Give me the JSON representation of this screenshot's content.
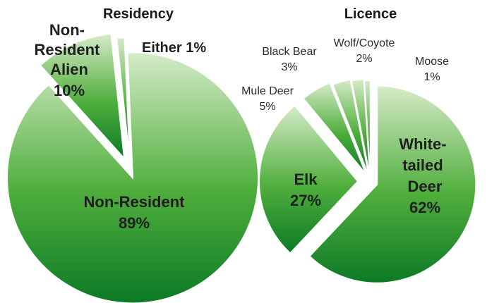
{
  "chart_data": [
    {
      "type": "pie",
      "title": "Residency",
      "slices": [
        {
          "label": "Non-Resident",
          "value": 89,
          "value_label": "89%"
        },
        {
          "label": "Either",
          "value": 1,
          "value_label": "1%"
        },
        {
          "label": "Non-Resident Alien",
          "value": 10,
          "value_label": "10%"
        }
      ]
    },
    {
      "type": "pie",
      "title": "Licence",
      "slices": [
        {
          "label": "White-tailed Deer",
          "value": 62,
          "value_label": "62%"
        },
        {
          "label": "Elk",
          "value": 27,
          "value_label": "27%"
        },
        {
          "label": "Mule Deer",
          "value": 5,
          "value_label": "5%"
        },
        {
          "label": "Black Bear",
          "value": 3,
          "value_label": "3%"
        },
        {
          "label": "Wolf/Coyote",
          "value": 2,
          "value_label": "2%"
        },
        {
          "label": "Moose",
          "value": 1,
          "value_label": "1%"
        }
      ]
    }
  ],
  "colors": {
    "slice_dark": "#0c7a26",
    "slice_mid": "#4fae3c",
    "slice_light": "#d6ebc8",
    "divider": "#ffffff"
  }
}
